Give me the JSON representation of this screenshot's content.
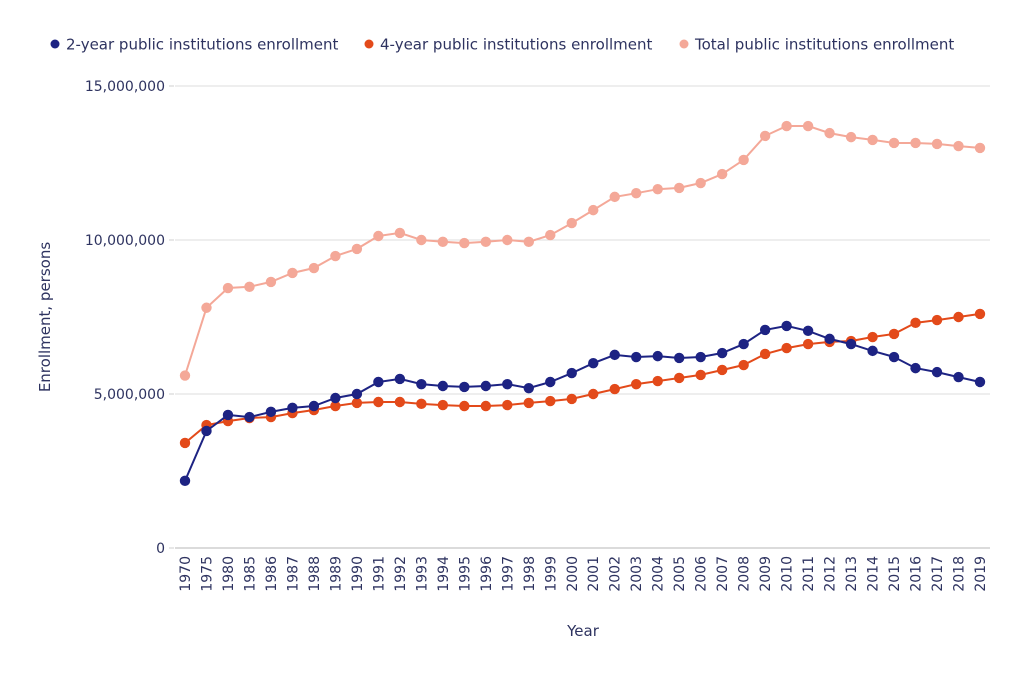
{
  "chart_data": {
    "type": "line",
    "title": "",
    "xlabel": "Year",
    "ylabel": "Enrollment, persons",
    "ylim": [
      0,
      15000000
    ],
    "yticks": [
      0,
      5000000,
      10000000,
      15000000
    ],
    "ytick_labels": [
      "0",
      "5,000,000",
      "10,000,000",
      "15,000,000"
    ],
    "grid": true,
    "legend_position": "top",
    "categories": [
      "1970",
      "1975",
      "1980",
      "1985",
      "1986",
      "1987",
      "1988",
      "1989",
      "1990",
      "1991",
      "1992",
      "1993",
      "1994",
      "1995",
      "1996",
      "1997",
      "1998",
      "1999",
      "2000",
      "2001",
      "2002",
      "2003",
      "2004",
      "2005",
      "2006",
      "2007",
      "2008",
      "2009",
      "2010",
      "2011",
      "2012",
      "2013",
      "2014",
      "2015",
      "2016",
      "2017",
      "2018",
      "2019"
    ],
    "series": [
      {
        "name": "2-year public institutions enrollment",
        "color": "#1d2383",
        "values": [
          2180000,
          3800000,
          4320000,
          4250000,
          4420000,
          4550000,
          4610000,
          4870000,
          5000000,
          5390000,
          5490000,
          5320000,
          5260000,
          5230000,
          5260000,
          5320000,
          5190000,
          5390000,
          5680000,
          6000000,
          6270000,
          6200000,
          6230000,
          6170000,
          6200000,
          6330000,
          6620000,
          7080000,
          7210000,
          7050000,
          6790000,
          6620000,
          6400000,
          6200000,
          5840000,
          5710000,
          5550000,
          5390000
        ]
      },
      {
        "name": "4-year public institutions enrollment",
        "color": "#e34a1a",
        "values": [
          3410000,
          3990000,
          4120000,
          4220000,
          4250000,
          4380000,
          4480000,
          4610000,
          4710000,
          4740000,
          4740000,
          4680000,
          4640000,
          4610000,
          4610000,
          4640000,
          4710000,
          4770000,
          4840000,
          5000000,
          5160000,
          5320000,
          5420000,
          5520000,
          5620000,
          5780000,
          5940000,
          6300000,
          6490000,
          6620000,
          6690000,
          6720000,
          6850000,
          6950000,
          7310000,
          7400000,
          7500000,
          7600000
        ]
      },
      {
        "name": "Total public institutions enrollment",
        "color": "#f4a898",
        "values": [
          5600000,
          7800000,
          8440000,
          8480000,
          8640000,
          8930000,
          9090000,
          9480000,
          9710000,
          10130000,
          10230000,
          10000000,
          9940000,
          9900000,
          9940000,
          10000000,
          9940000,
          10160000,
          10550000,
          10970000,
          11400000,
          11520000,
          11650000,
          11690000,
          11850000,
          12140000,
          12600000,
          13380000,
          13700000,
          13700000,
          13470000,
          13340000,
          13250000,
          13150000,
          13150000,
          13120000,
          13050000,
          12990000
        ]
      }
    ]
  }
}
